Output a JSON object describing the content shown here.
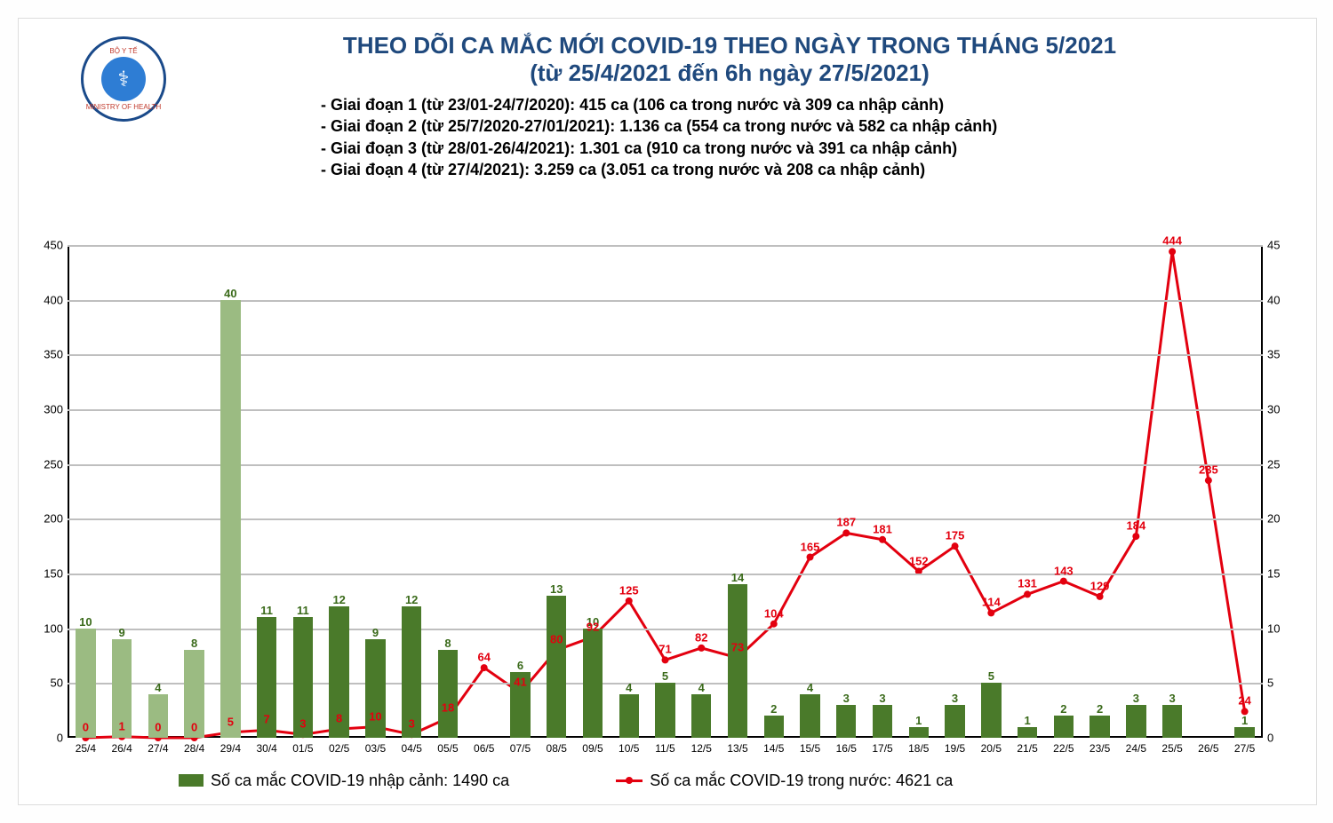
{
  "title_line1": "THEO DÕI CA MẮC MỚI COVID-19 THEO NGÀY TRONG THÁNG 5/2021",
  "title_line2": "(từ 25/4/2021 đến 6h ngày 27/5/2021)",
  "title_color": "#1f497d",
  "title_fontsize": 26,
  "notes": [
    "- Giai đoạn 1 (từ 23/01-24/7/2020): 415 ca (106 ca trong nước và 309 ca nhập cảnh)",
    "- Giai đoạn 2 (từ 25/7/2020-27/01/2021): 1.136 ca (554 ca trong nước và 582 ca nhập cảnh)",
    "- Giai đoạn 3 (từ 28/01-26/4/2021): 1.301 ca (910 ca trong nước và 391 ca nhập cảnh)",
    "- Giai đoạn 4 (từ 27/4/2021): 3.259 ca (3.051 ca trong nước và 208 ca nhập cảnh)"
  ],
  "note_fontsize": 18,
  "logo_top": "BỘ Y TẾ",
  "logo_bottom": "MINISTRY OF HEALTH",
  "chart": {
    "type": "bar+line",
    "categories": [
      "25/4",
      "26/4",
      "27/4",
      "28/4",
      "29/4",
      "30/4",
      "01/5",
      "02/5",
      "03/5",
      "04/5",
      "05/5",
      "06/5",
      "07/5",
      "08/5",
      "09/5",
      "10/5",
      "11/5",
      "12/5",
      "13/5",
      "14/5",
      "15/5",
      "16/5",
      "17/5",
      "18/5",
      "19/5",
      "20/5",
      "21/5",
      "22/5",
      "23/5",
      "24/5",
      "25/5",
      "26/5",
      "27/5"
    ],
    "bars": {
      "label": "Số ca mắc COVID-19 nhập cảnh: 1490 ca",
      "axis": "right",
      "values": [
        10,
        9,
        4,
        8,
        40,
        11,
        11,
        12,
        9,
        12,
        8,
        null,
        6,
        13,
        10,
        4,
        5,
        4,
        14,
        2,
        4,
        3,
        3,
        1,
        3,
        5,
        1,
        2,
        2,
        3,
        3,
        null,
        1
      ],
      "light_indices": [
        0,
        1,
        2,
        3,
        4
      ],
      "light_color": "#9bbb82",
      "dark_color": "#4a7a2a",
      "bar_width_ratio": 0.55,
      "label_color": "#3a6a1a"
    },
    "line": {
      "label": "Số ca mắc COVID-19 trong nước: 4621 ca",
      "axis": "left",
      "values": [
        0,
        1,
        0,
        0,
        5,
        7,
        3,
        8,
        10,
        3,
        18,
        64,
        41,
        80,
        92,
        125,
        71,
        82,
        73,
        104,
        165,
        187,
        181,
        152,
        175,
        114,
        131,
        143,
        129,
        184,
        444,
        235,
        24
      ],
      "value_labels": [
        "0",
        "1",
        "0",
        "0",
        "5",
        "7",
        "3",
        "8",
        "10",
        "3",
        "18",
        "64",
        "41",
        "80",
        "92",
        "125",
        "71",
        "82",
        "73",
        "104",
        "165",
        "187",
        "181",
        "152",
        "175",
        "114",
        "131",
        "143",
        "129",
        "184",
        "444",
        "235",
        "24"
      ],
      "color": "#e3000f",
      "line_width": 3,
      "label_color": "#e3000f"
    },
    "y_left": {
      "min": 0,
      "max": 450,
      "step": 50
    },
    "y_right": {
      "min": 0,
      "max": 45,
      "step": 5
    },
    "grid_color": "#bfbfbf",
    "background": "#ffffff",
    "xtick_fontsize": 12
  },
  "legend": {
    "bar_text": "Số ca mắc COVID-19 nhập cảnh: 1490 ca",
    "line_text": "Số ca mắc COVID-19 trong nước: 4621 ca"
  }
}
